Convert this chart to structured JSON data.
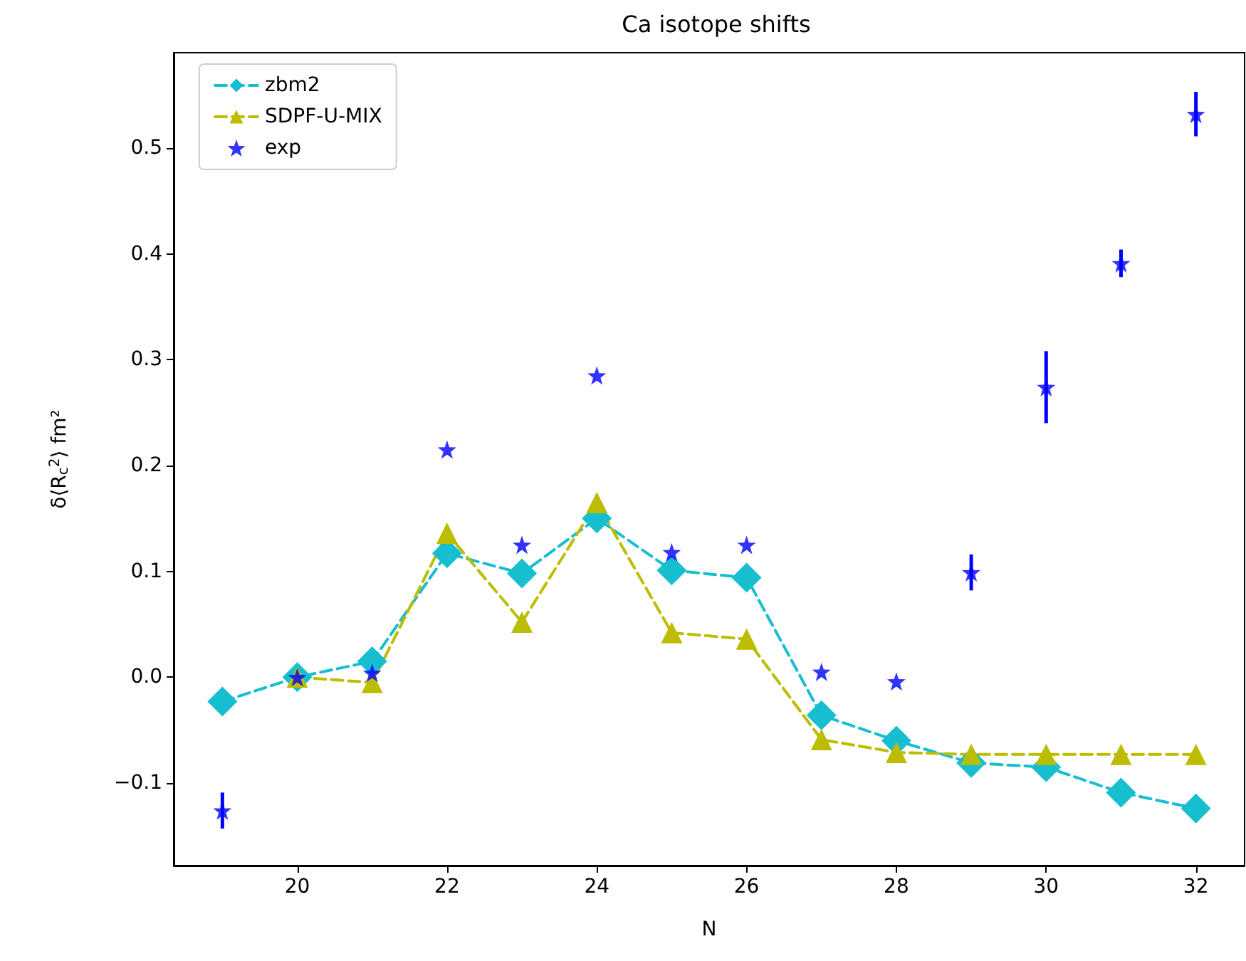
{
  "chart_data": {
    "type": "line",
    "title": "Ca isotope shifts",
    "xlabel": "N",
    "ylabel": "δ⟨R$_{c}$$^{2}$⟩ fm²",
    "xlim": [
      18.35,
      32.65
    ],
    "xticks": [
      20,
      22,
      24,
      26,
      28,
      30,
      32
    ],
    "ylim": [
      -0.178,
      0.59
    ],
    "yticks": [
      {
        "value": -0.1,
        "label": "−0.1"
      },
      {
        "value": 0,
        "label": "0.0"
      },
      {
        "value": 0.1,
        "label": "0.1"
      },
      {
        "value": 0.2,
        "label": "0.2"
      },
      {
        "value": 0.3,
        "label": "0.3"
      },
      {
        "value": 0.4,
        "label": "0.4"
      },
      {
        "value": 0.5,
        "label": "0.5"
      }
    ],
    "grid": false,
    "legend": "top left",
    "series": [
      {
        "name": "zbm2",
        "color": "#17becf",
        "marker": "diamond",
        "line_style": "dashed",
        "x": [
          19,
          20,
          21,
          22,
          23,
          24,
          25,
          26,
          27,
          28,
          29,
          30,
          31,
          32
        ],
        "values": [
          -0.023,
          0.0,
          0.015,
          0.117,
          0.098,
          0.15,
          0.101,
          0.094,
          -0.036,
          -0.06,
          -0.081,
          -0.085,
          -0.109,
          -0.124
        ]
      },
      {
        "name": "SDPF-U-MIX",
        "color": "#bcbd00",
        "marker": "triangle",
        "line_style": "dashed",
        "x": [
          20,
          21,
          22,
          23,
          24,
          25,
          26,
          27,
          28,
          29,
          30,
          31,
          32
        ],
        "values": [
          0.0,
          -0.005,
          0.136,
          0.052,
          0.165,
          0.042,
          0.036,
          -0.059,
          -0.071,
          -0.073,
          -0.073,
          -0.073,
          -0.073
        ]
      },
      {
        "name": "exp",
        "type": "scatter",
        "color": "#0000ff",
        "marker": "star",
        "x": [
          19,
          20,
          21,
          22,
          23,
          24,
          25,
          26,
          27,
          28,
          29,
          30,
          31,
          32
        ],
        "values": [
          -0.126,
          0.0,
          0.004,
          0.215,
          0.125,
          0.285,
          0.118,
          0.125,
          0.005,
          -0.004,
          0.099,
          0.274,
          0.391,
          0.532
        ],
        "errors": [
          0.017,
          null,
          null,
          null,
          null,
          null,
          null,
          null,
          null,
          null,
          0.017,
          0.034,
          0.013,
          0.021
        ]
      }
    ]
  }
}
